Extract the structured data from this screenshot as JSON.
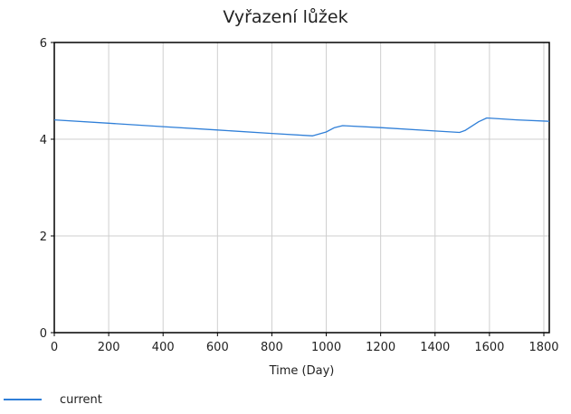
{
  "chart_data": {
    "type": "line",
    "title": "Vyřazení lůžek",
    "xlabel": "Time (Day)",
    "ylabel": "",
    "xlim": [
      0,
      1820
    ],
    "ylim": [
      0,
      6
    ],
    "xticks": [
      0,
      200,
      400,
      600,
      800,
      1000,
      1200,
      1400,
      1600,
      1800
    ],
    "yticks": [
      0,
      2,
      4,
      6
    ],
    "grid": true,
    "legend": "bottom-left",
    "series": [
      {
        "name": "current",
        "color": "#2f7fd8",
        "x": [
          0,
          200,
          400,
          600,
          800,
          950,
          1000,
          1030,
          1060,
          1200,
          1400,
          1490,
          1510,
          1560,
          1590,
          1700,
          1820
        ],
        "y": [
          4.4,
          4.33,
          4.26,
          4.19,
          4.12,
          4.07,
          4.15,
          4.24,
          4.28,
          4.24,
          4.17,
          4.14,
          4.18,
          4.36,
          4.44,
          4.4,
          4.37
        ]
      }
    ]
  }
}
